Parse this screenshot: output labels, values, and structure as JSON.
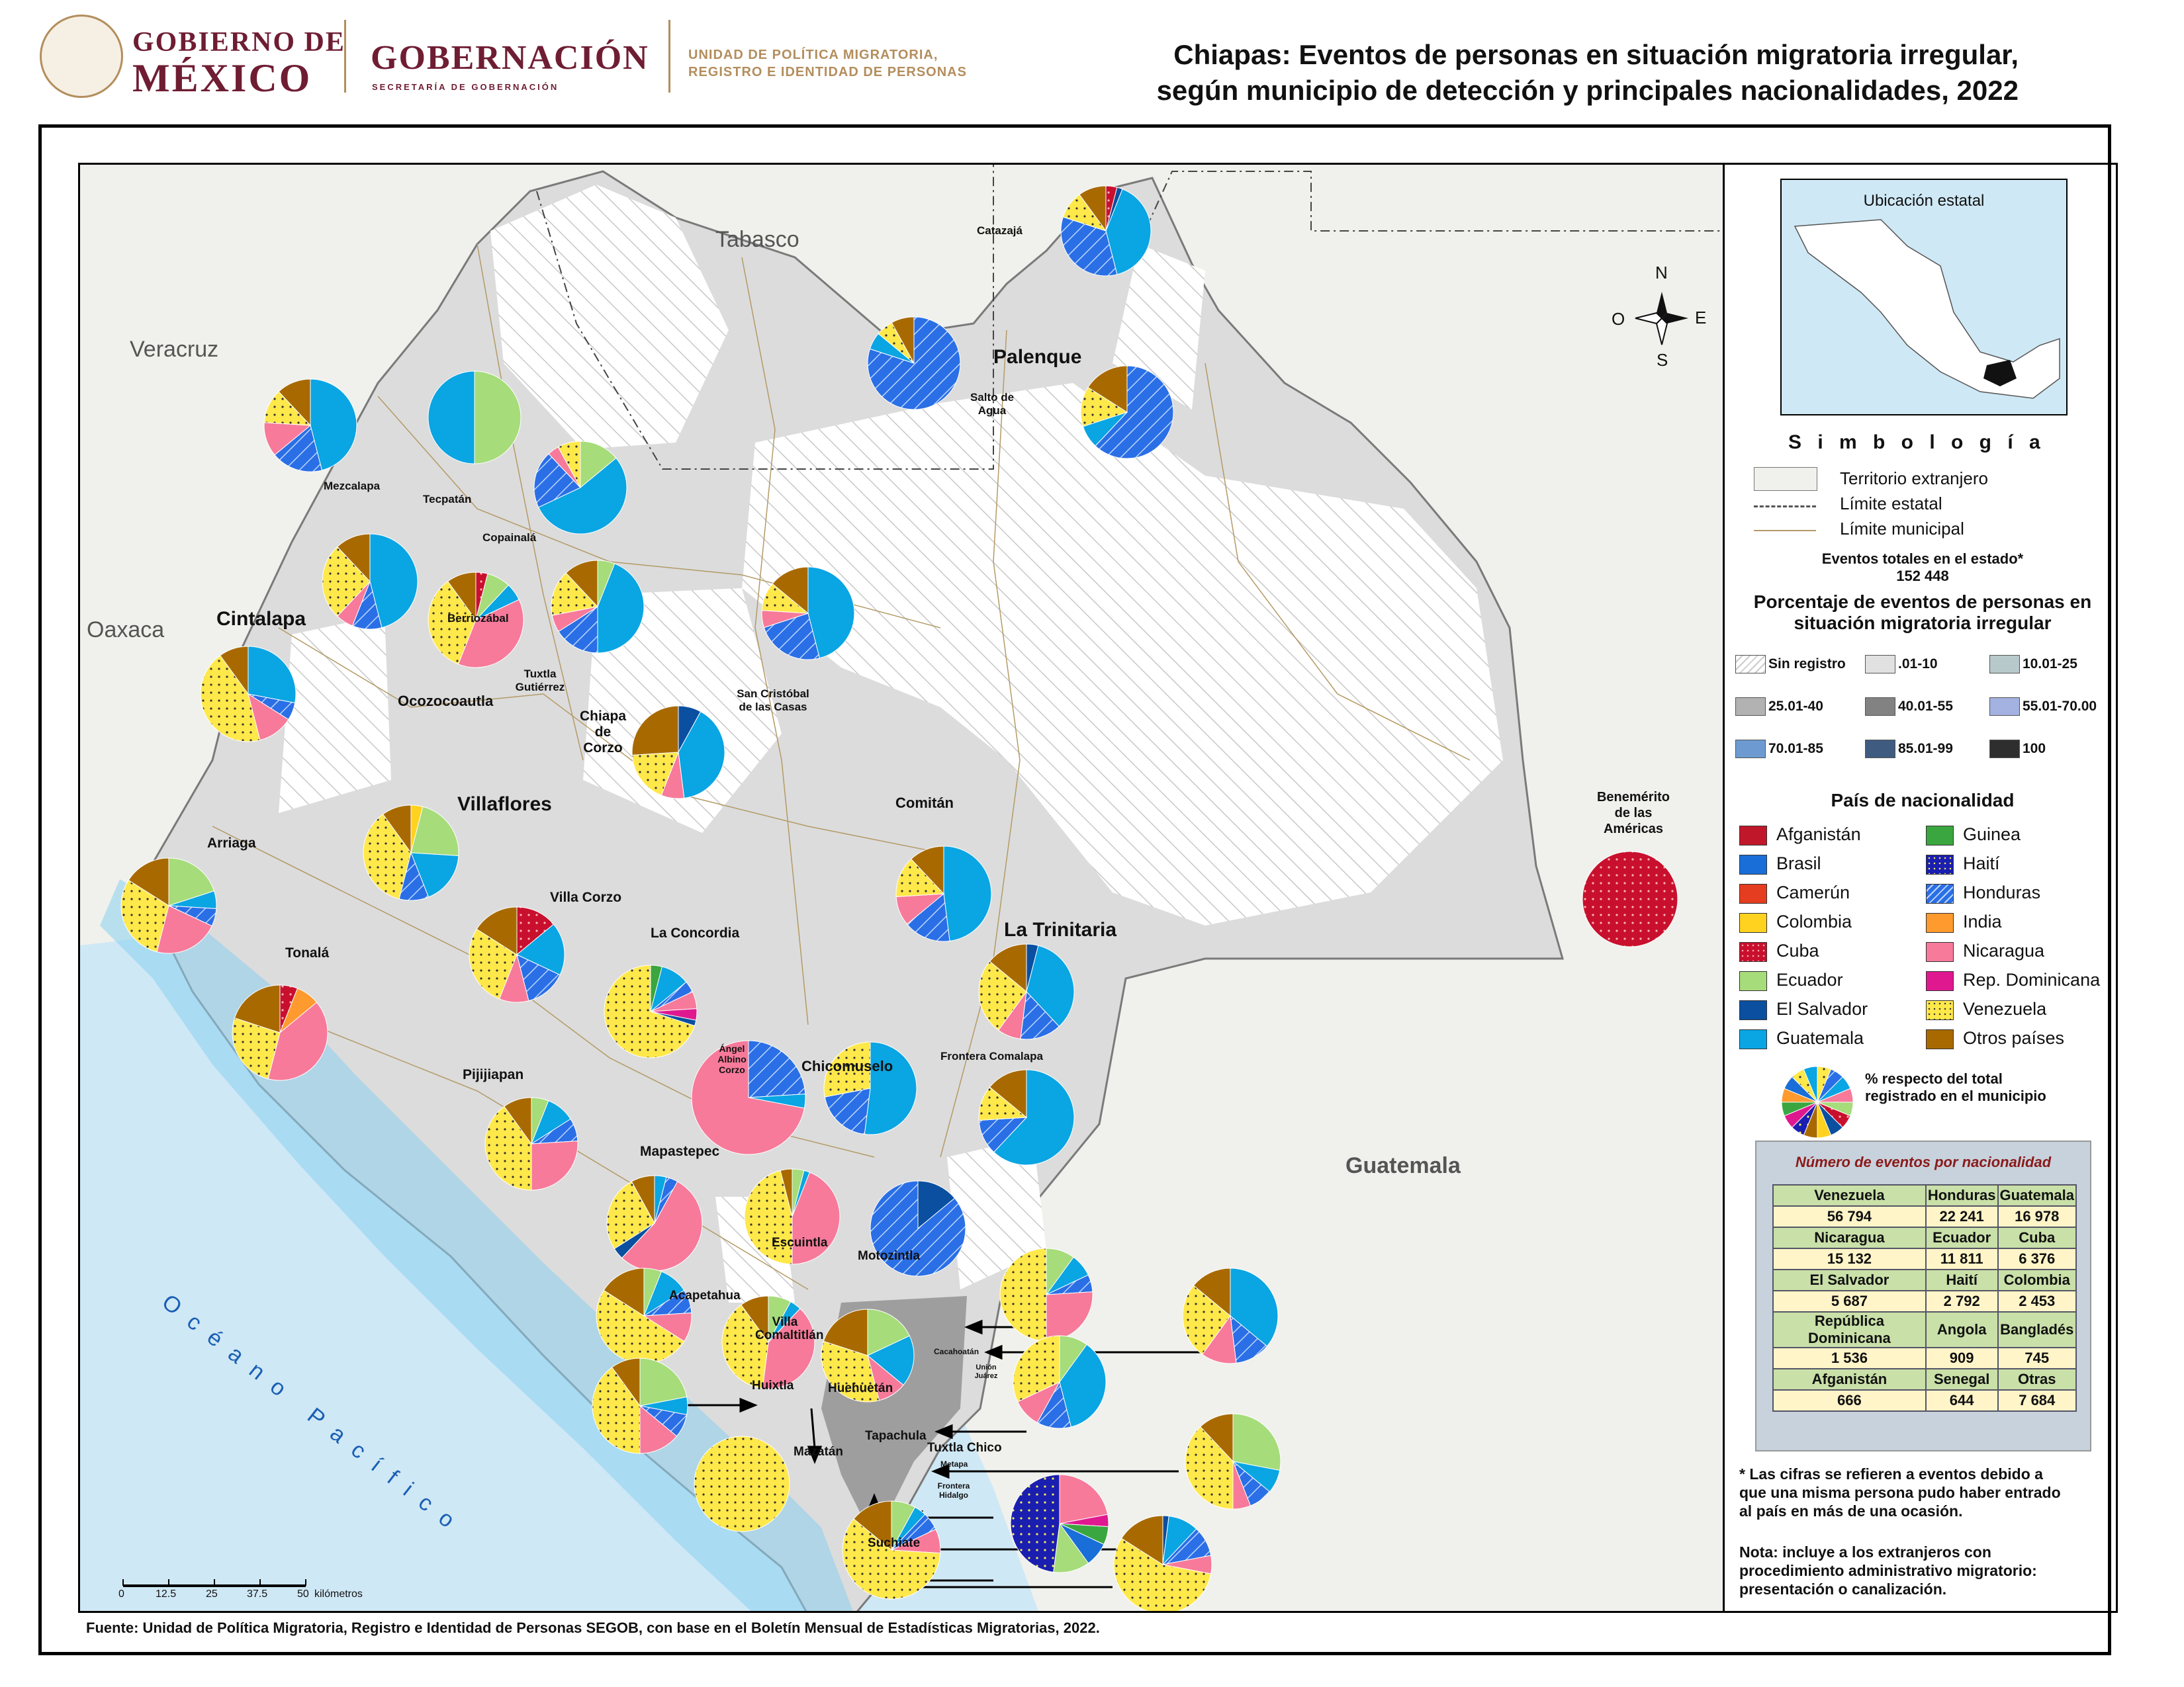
{
  "header": {
    "gob_line1": "GOBIERNO DE",
    "gob_line2": "MÉXICO",
    "gobernacion": "GOBERNACIÓN",
    "gobernacion_sub": "SECRETARÍA DE GOBERNACIÓN",
    "unit_line1": "UNIDAD DE POLÍTICA MIGRATORIA,",
    "unit_line2": "REGISTRO E IDENTIDAD DE PERSONAS",
    "title_line1": "Chiapas: Eventos de personas en situación migratoria irregular,",
    "title_line2": "según municipio de detección y principales nacionalidades, 2022"
  },
  "map": {
    "states": [
      "Tabasco",
      "Veracruz",
      "Oaxaca",
      "Guatemala"
    ],
    "ocean": "O c é a n o   P a c í f i c o",
    "compass": {
      "n": "N",
      "s": "S",
      "e": "E",
      "o": "O"
    },
    "municipalities_large": [
      "Cintalapa",
      "Villaflores",
      "Palenque",
      "La Trinitaria"
    ],
    "municipalities": [
      "Catazajá",
      "Salto de Agua",
      "Mezcalapa",
      "Tecpatán",
      "Copainalá",
      "Berriozábal",
      "Ocozocoautla",
      "Tuxtla Gutiérrez",
      "Chiapa de Corzo",
      "San Cristóbal de las Casas",
      "Comitán",
      "Benemérito de las Américas",
      "Arriaga",
      "Tonalá",
      "Villa Corzo",
      "La Concordia",
      "Ángel Albino Corzo",
      "Chicomuselo",
      "Frontera Comalapa",
      "Pijijiapan",
      "Mapastepec",
      "Escuintla",
      "Motozintla",
      "Acapetahua",
      "Villa Comaltitlán",
      "Huixtla",
      "Huehuetán",
      "Mazatán",
      "Tapachula",
      "Tuxtla Chico",
      "Metapa",
      "Frontera Hidalgo",
      "Suchiate",
      "Cacahoatán",
      "Unión Juárez"
    ],
    "scale": {
      "ticks": [
        "0",
        "12.5",
        "25",
        "37.5",
        "50"
      ],
      "unit": "kilómetros"
    }
  },
  "legend": {
    "inset_title": "Ubicación estatal",
    "simbologia": "S i m b o l o g í a",
    "items": [
      "Territorio extranjero",
      "Límite estatal",
      "Límite municipal"
    ],
    "total_label": "Eventos totales en el estado*",
    "total_value": "152 448",
    "pct_title_line1": "Porcentaje de eventos de personas en",
    "pct_title_line2": "situación migratoria irregular",
    "classes": [
      {
        "label": "Sin registro",
        "color": "#ffffff"
      },
      {
        "label": ".01-10",
        "color": "#e1e1e1"
      },
      {
        "label": "10.01-25",
        "color": "#b8c9cc"
      },
      {
        "label": "25.01-40",
        "color": "#b2b2b2"
      },
      {
        "label": "40.01-55",
        "color": "#828282"
      },
      {
        "label": "55.01-70.00",
        "color": "#a3b2e0"
      },
      {
        "label": "70.01-85",
        "color": "#6d9bd1"
      },
      {
        "label": "85.01-99",
        "color": "#3f5b7f"
      },
      {
        "label": "100",
        "color": "#2e2e2e"
      }
    ],
    "nat_title": "País de nacionalidad",
    "nationalities": [
      {
        "label": "Afganistán",
        "color": "#c0182a"
      },
      {
        "label": "Brasil",
        "color": "#1a6ed8"
      },
      {
        "label": "Camerún",
        "color": "#e53d1f"
      },
      {
        "label": "Colombia",
        "color": "#ffd21f"
      },
      {
        "label": "Cuba",
        "color": "#c8102e"
      },
      {
        "label": "Ecuador",
        "color": "#a6dc7a"
      },
      {
        "label": "El Salvador",
        "color": "#0a4fa0"
      },
      {
        "label": "Guatemala",
        "color": "#0aa5e3"
      },
      {
        "label": "Guinea",
        "color": "#3aa640"
      },
      {
        "label": "Haití",
        "color": "#1a1fb0"
      },
      {
        "label": "Honduras",
        "color": "#2a6fe6"
      },
      {
        "label": "India",
        "color": "#ff9a2e"
      },
      {
        "label": "Nicaragua",
        "color": "#f77a9a"
      },
      {
        "label": "Rep. Dominicana",
        "color": "#e01890"
      },
      {
        "label": "Venezuela",
        "color": "#ffe84a"
      },
      {
        "label": "Otros países",
        "color": "#a86a00"
      }
    ],
    "pie_note_line1": "% respecto del total",
    "pie_note_line2": "registrado en el municipio",
    "table_title": "Número de eventos por nacionalidad",
    "table": [
      [
        "Venezuela",
        "Honduras",
        "Guatemala"
      ],
      [
        "56 794",
        "22 241",
        "16 978"
      ],
      [
        "Nicaragua",
        "Ecuador",
        "Cuba"
      ],
      [
        "15 132",
        "11 811",
        "6 376"
      ],
      [
        "El Salvador",
        "Haití",
        "Colombia"
      ],
      [
        "5 687",
        "2 792",
        "2 453"
      ],
      [
        "República Dominicana",
        "Angola",
        "Bangladés"
      ],
      [
        "1 536",
        "909",
        "745"
      ],
      [
        "Afganistán",
        "Senegal",
        "Otras"
      ],
      [
        "666",
        "644",
        "7 684"
      ]
    ],
    "note1_line1": "* Las cifras se refieren a eventos debido a",
    "note1_line2": "que una misma persona pudo haber entrado",
    "note1_line3": "al país en más de una ocasión.",
    "note2_line1": "Nota: incluye a los extranjeros con",
    "note2_line2": "procedimiento administrativo migratorio:",
    "note2_line3": "presentación o canalización."
  },
  "source": "Fuente: Unidad de Política Migratoria, Registro e Identidad de Personas SEGOB, con base en el Boletín Mensual de Estadísticas Migratorias, 2022.",
  "colors": {
    "state_fill": "#dcdcdc",
    "foreign_fill": "#f0f1ec",
    "ocean": "#cfe8f5",
    "coast": "#8ad0f0",
    "tapachula": "#9e9e9e"
  }
}
